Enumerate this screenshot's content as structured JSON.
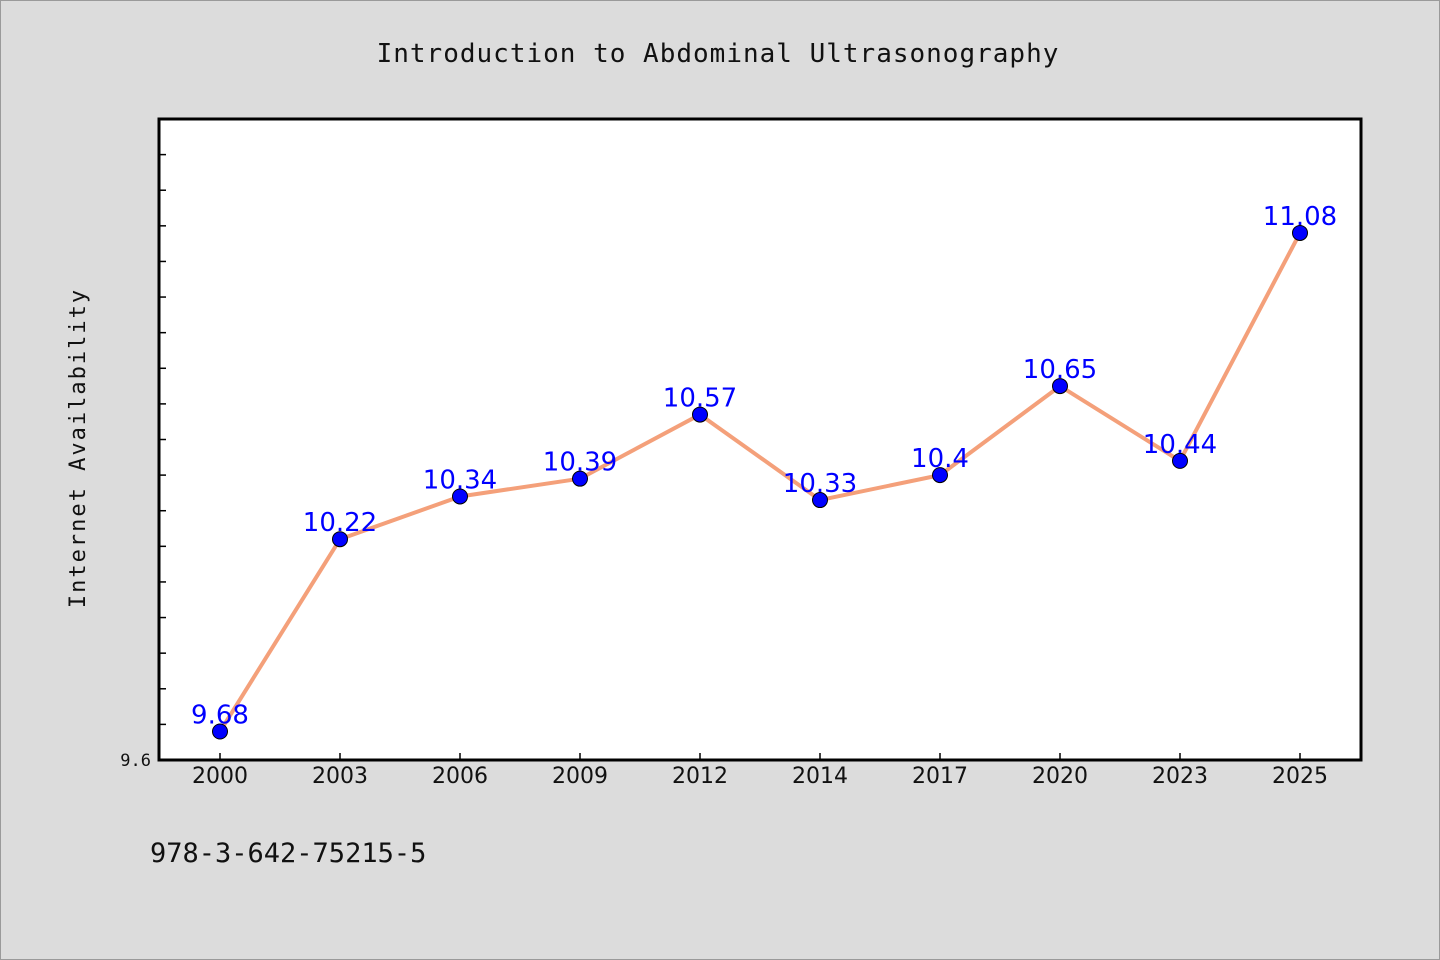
{
  "chart_data": {
    "type": "line",
    "title": "Introduction to Abdominal Ultrasonography",
    "xlabel": "",
    "ylabel": "Internet Availability",
    "categories": [
      "2000",
      "2003",
      "2006",
      "2009",
      "2012",
      "2014",
      "2017",
      "2020",
      "2023",
      "2025"
    ],
    "series": [
      {
        "values": [
          9.68,
          10.22,
          10.34,
          10.39,
          10.57,
          10.33,
          10.4,
          10.65,
          10.44,
          11.08
        ],
        "labels": [
          "9.68",
          "10.22",
          "10.34",
          "10.39",
          "10.57",
          "10.33",
          "10.4",
          "10.65",
          "10.44",
          "11.08"
        ]
      }
    ],
    "ytick_labels": [
      "9.6"
    ],
    "ylim": [
      9.6,
      11.4
    ],
    "grid": false,
    "line_color": "#f4a07a",
    "marker_color": "#0000ff",
    "label_color": "#0000ff"
  },
  "footer": {
    "isbn": "978-3-642-75215-5"
  }
}
